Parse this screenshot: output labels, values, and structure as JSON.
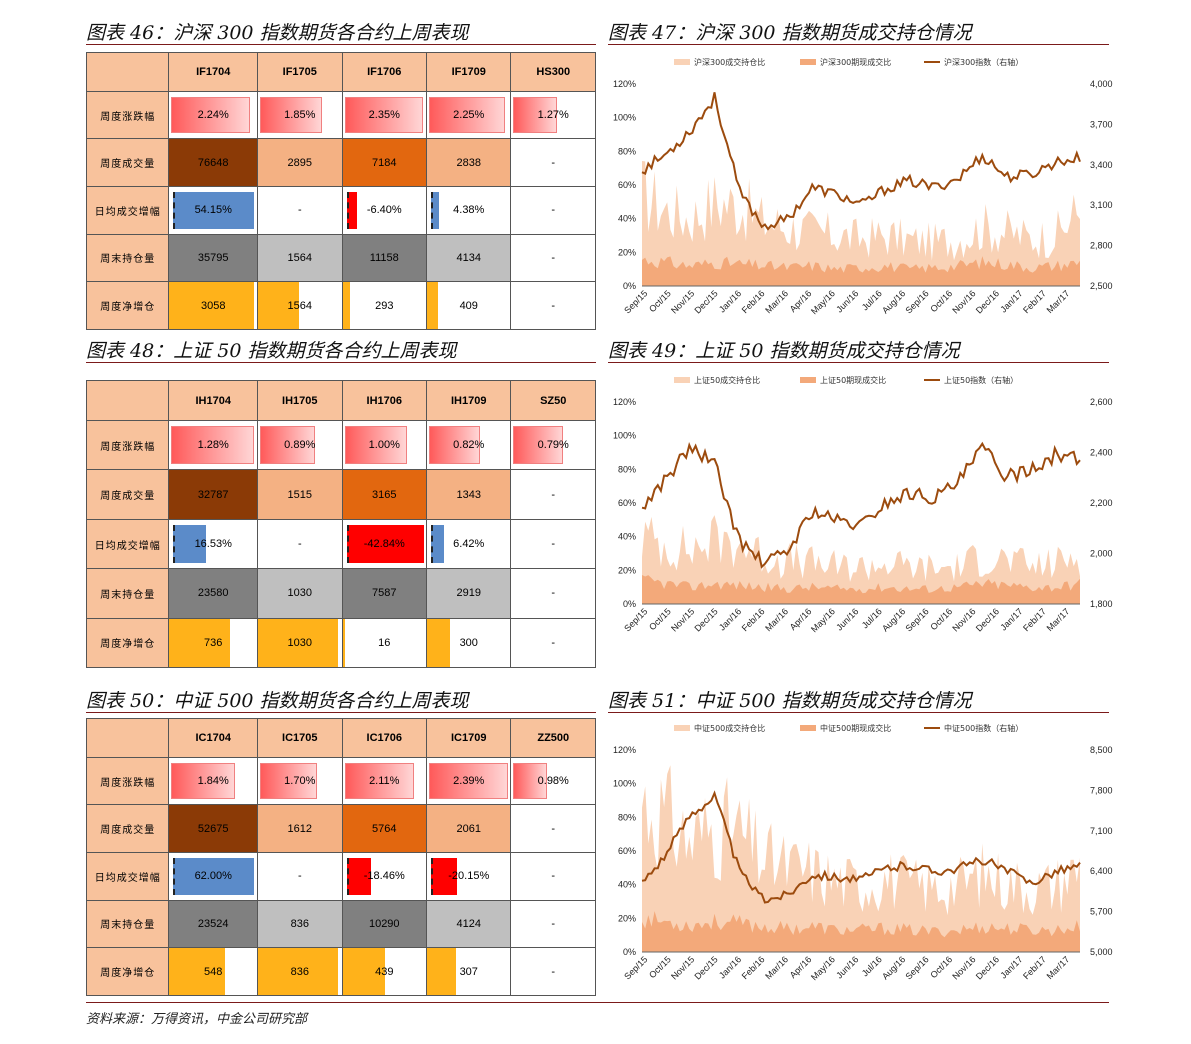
{
  "colors": {
    "header_bg": "#f8c29c",
    "dark_brown": "#8b3a06",
    "orange": "#e2670f",
    "light_orange": "#f4b183",
    "gray_dark": "#808080",
    "gray_light": "#bfbfbf",
    "gold": "#ffb21a",
    "blue": "#5b8bc9",
    "red": "#ff0000",
    "line": "#9c4b0e",
    "area_light": "#f9d2b6",
    "area_mid": "#f3a97a"
  },
  "tables": [
    {
      "title": "图表 46：沪深 300 指数期货各合约上周表现",
      "headers": [
        "IF1704",
        "IF1705",
        "IF1706",
        "IF1709",
        "HS300"
      ],
      "rows": [
        {
          "label": "周度涨跌幅",
          "kind": "pct",
          "cells": [
            "2.24%",
            "1.85%",
            "2.35%",
            "2.25%",
            "1.27%"
          ],
          "values": [
            2.24,
            1.85,
            2.35,
            2.25,
            1.27
          ]
        },
        {
          "label": "周度成交量",
          "kind": "vol",
          "cells": [
            "76648",
            "2895",
            "7184",
            "2838",
            "-"
          ]
        },
        {
          "label": "日均成交增幅",
          "kind": "chg",
          "cells": [
            "54.15%",
            "-",
            "-6.40%",
            "4.38%",
            "-"
          ],
          "values": [
            54.15,
            null,
            -6.4,
            4.38,
            null
          ]
        },
        {
          "label": "周末持仓量",
          "kind": "oi",
          "cells": [
            "35795",
            "1564",
            "11158",
            "4134",
            "-"
          ]
        },
        {
          "label": "周度净增仓",
          "kind": "net",
          "cells": [
            "3058",
            "1564",
            "293",
            "409",
            "-"
          ],
          "values": [
            3058,
            1564,
            293,
            409,
            null
          ]
        }
      ]
    },
    {
      "title": "图表 48：上证 50 指数期货各合约上周表现",
      "headers": [
        "IH1704",
        "IH1705",
        "IH1706",
        "IH1709",
        "SZ50"
      ],
      "rows": [
        {
          "label": "周度涨跌幅",
          "kind": "pct",
          "cells": [
            "1.28%",
            "0.89%",
            "1.00%",
            "0.82%",
            "0.79%"
          ],
          "values": [
            1.28,
            0.89,
            1.0,
            0.82,
            0.79
          ]
        },
        {
          "label": "周度成交量",
          "kind": "vol",
          "cells": [
            "32787",
            "1515",
            "3165",
            "1343",
            "-"
          ]
        },
        {
          "label": "日均成交增幅",
          "kind": "chg",
          "cells": [
            "16.53%",
            "-",
            "-42.84%",
            "6.42%",
            "-"
          ],
          "values": [
            16.53,
            null,
            -42.84,
            6.42,
            null
          ]
        },
        {
          "label": "周末持仓量",
          "kind": "oi",
          "cells": [
            "23580",
            "1030",
            "7587",
            "2919",
            "-"
          ]
        },
        {
          "label": "周度净增仓",
          "kind": "net",
          "cells": [
            "736",
            "1030",
            "16",
            "300",
            "-"
          ],
          "values": [
            736,
            1030,
            16,
            300,
            null
          ]
        }
      ]
    },
    {
      "title": "图表 50：中证 500 指数期货各合约上周表现",
      "headers": [
        "IC1704",
        "IC1705",
        "IC1706",
        "IC1709",
        "ZZ500"
      ],
      "rows": [
        {
          "label": "周度涨跌幅",
          "kind": "pct",
          "cells": [
            "1.84%",
            "1.70%",
            "2.11%",
            "2.39%",
            "0.98%"
          ],
          "values": [
            1.84,
            1.7,
            2.11,
            2.39,
            0.98
          ]
        },
        {
          "label": "周度成交量",
          "kind": "vol",
          "cells": [
            "52675",
            "1612",
            "5764",
            "2061",
            "-"
          ]
        },
        {
          "label": "日均成交增幅",
          "kind": "chg",
          "cells": [
            "62.00%",
            "-",
            "-18.46%",
            "-20.15%",
            "-"
          ],
          "values": [
            62.0,
            null,
            -18.46,
            -20.15,
            null
          ]
        },
        {
          "label": "周末持仓量",
          "kind": "oi",
          "cells": [
            "23524",
            "836",
            "10290",
            "4124",
            "-"
          ]
        },
        {
          "label": "周度净增仓",
          "kind": "net",
          "cells": [
            "548",
            "836",
            "439",
            "307",
            "-"
          ],
          "values": [
            548,
            836,
            439,
            307,
            null
          ]
        }
      ]
    }
  ],
  "chart_data": [
    {
      "type": "area",
      "title": "图表 47：沪深 300 指数期货成交持仓情况",
      "legend": [
        "沪深300成交持仓比",
        "沪深300期现成交比",
        "沪深300指数（右轴）"
      ],
      "legend_position": "top",
      "categories": [
        "Sep/15",
        "Oct/15",
        "Nov/15",
        "Dec/15",
        "Jan/16",
        "Feb/16",
        "Mar/16",
        "Apr/16",
        "May/16",
        "Jun/16",
        "Jul/16",
        "Aug/16",
        "Sep/16",
        "Oct/16",
        "Nov/16",
        "Dec/16",
        "Jan/17",
        "Feb/17",
        "Mar/17"
      ],
      "y_left_ticks": [
        "0%",
        "20%",
        "40%",
        "60%",
        "80%",
        "100%",
        "120%"
      ],
      "y_left_range": [
        0,
        120
      ],
      "y_right_ticks": [
        "2,500",
        "2,800",
        "3,100",
        "3,400",
        "3,700",
        "4,000"
      ],
      "y_right_range": [
        2500,
        4000
      ],
      "series": [
        {
          "name": "沪深300成交持仓比",
          "axis": "left",
          "values": [
            55,
            45,
            40,
            50,
            48,
            38,
            35,
            32,
            30,
            28,
            30,
            27,
            26,
            28,
            35,
            32,
            28,
            30,
            45
          ]
        },
        {
          "name": "沪深300期现成交比",
          "axis": "left",
          "values": [
            16,
            14,
            12,
            14,
            13,
            12,
            11,
            12,
            10,
            11,
            12,
            10,
            11,
            12,
            14,
            13,
            11,
            12,
            14
          ]
        },
        {
          "name": "沪深300指数（右轴）",
          "axis": "right",
          "values": [
            3360,
            3480,
            3660,
            3900,
            3200,
            2940,
            3000,
            3230,
            3180,
            3100,
            3220,
            3280,
            3230,
            3300,
            3470,
            3310,
            3330,
            3420,
            3450
          ]
        }
      ]
    },
    {
      "type": "area",
      "title": "图表 49：上证 50 指数期货成交持仓情况",
      "legend": [
        "上证50成交持仓比",
        "上证50期现成交比",
        "上证50指数（右轴）"
      ],
      "legend_position": "top",
      "categories": [
        "Sep/15",
        "Oct/15",
        "Nov/15",
        "Dec/15",
        "Jan/16",
        "Feb/16",
        "Mar/16",
        "Apr/16",
        "May/16",
        "Jun/16",
        "Jul/16",
        "Aug/16",
        "Sep/16",
        "Oct/16",
        "Nov/16",
        "Dec/16",
        "Jan/17",
        "Feb/17",
        "Mar/17"
      ],
      "y_left_ticks": [
        "0%",
        "20%",
        "40%",
        "60%",
        "80%",
        "100%",
        "120%"
      ],
      "y_left_range": [
        0,
        120
      ],
      "y_right_ticks": [
        "1,800",
        "2,000",
        "2,200",
        "2,400",
        "2,600"
      ],
      "y_right_range": [
        1800,
        2600
      ],
      "series": [
        {
          "name": "上证50成交持仓比",
          "axis": "left",
          "values": [
            40,
            35,
            32,
            38,
            36,
            28,
            26,
            24,
            22,
            22,
            24,
            22,
            21,
            22,
            28,
            26,
            22,
            24,
            30
          ]
        },
        {
          "name": "上证50期现成交比",
          "axis": "left",
          "values": [
            14,
            12,
            10,
            12,
            11,
            10,
            9,
            10,
            9,
            9,
            10,
            9,
            9,
            10,
            12,
            11,
            10,
            10,
            12
          ]
        },
        {
          "name": "上证50指数（右轴）",
          "axis": "right",
          "values": [
            2180,
            2300,
            2420,
            2350,
            2050,
            1960,
            2010,
            2170,
            2130,
            2110,
            2200,
            2240,
            2220,
            2280,
            2420,
            2300,
            2340,
            2390,
            2370
          ]
        }
      ]
    },
    {
      "type": "area",
      "title": "图表 51：中证 500 指数期货成交持仓情况",
      "legend": [
        "中证500成交持仓比",
        "中证500期现成交比",
        "中证500指数（右轴）"
      ],
      "legend_position": "top",
      "categories": [
        "Sep/15",
        "Oct/15",
        "Nov/15",
        "Dec/15",
        "Jan/16",
        "Feb/16",
        "Mar/16",
        "Apr/16",
        "May/16",
        "Jun/16",
        "Jul/16",
        "Aug/16",
        "Sep/16",
        "Oct/16",
        "Nov/16",
        "Dec/16",
        "Jan/17",
        "Feb/17",
        "Mar/17"
      ],
      "y_left_ticks": [
        "0%",
        "20%",
        "40%",
        "60%",
        "80%",
        "100%",
        "120%"
      ],
      "y_left_range": [
        0,
        120
      ],
      "y_right_ticks": [
        "5,000",
        "5,700",
        "6,400",
        "7,100",
        "7,800",
        "8,500"
      ],
      "y_right_range": [
        5000,
        8500
      ],
      "series": [
        {
          "name": "中证500成交持仓比",
          "axis": "left",
          "values": [
            90,
            80,
            65,
            75,
            70,
            55,
            50,
            48,
            42,
            40,
            44,
            40,
            38,
            40,
            46,
            42,
            38,
            40,
            50
          ]
        },
        {
          "name": "中证500期现成交比",
          "axis": "left",
          "values": [
            20,
            18,
            16,
            18,
            17,
            15,
            14,
            15,
            13,
            13,
            14,
            13,
            12,
            13,
            15,
            14,
            13,
            13,
            15
          ]
        },
        {
          "name": "中证500指数（右轴）",
          "axis": "right",
          "values": [
            6200,
            6700,
            7400,
            7700,
            6400,
            5900,
            6000,
            6350,
            6300,
            6250,
            6450,
            6500,
            6400,
            6450,
            6600,
            6400,
            6200,
            6400,
            6500
          ]
        }
      ]
    }
  ],
  "source": "资料来源：万得资讯，中金公司研究部"
}
